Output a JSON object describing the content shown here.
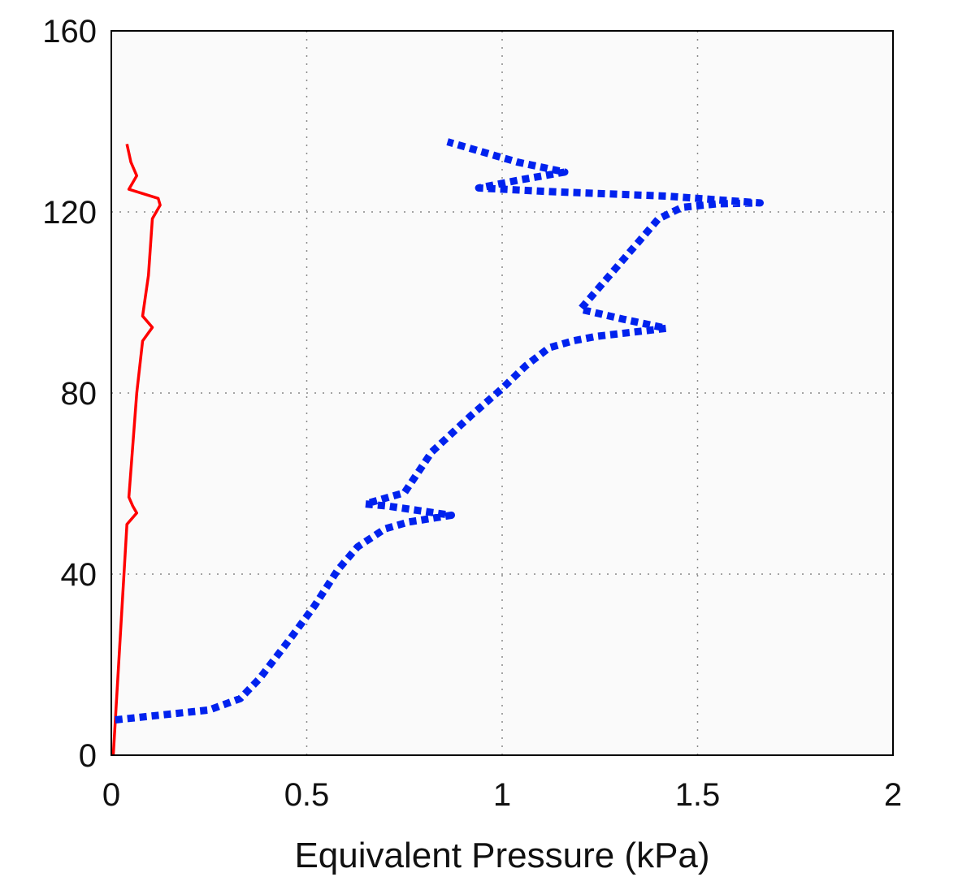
{
  "chart_data": {
    "type": "line",
    "title": "",
    "xlabel": "Equivalent Pressure (kPa)",
    "ylabel": "",
    "xlim": [
      0,
      2
    ],
    "ylim": [
      0,
      160
    ],
    "xticks": [
      "0",
      "0.5",
      "1",
      "1.5",
      "2"
    ],
    "yticks": [
      "0",
      "40",
      "80",
      "120",
      "160"
    ],
    "grid": true,
    "legend": "none",
    "series": [
      {
        "color": "#ff0000",
        "style": "solid",
        "points": [
          [
            0.04,
            135
          ],
          [
            0.05,
            131
          ],
          [
            0.065,
            128
          ],
          [
            0.045,
            125
          ],
          [
            0.12,
            123
          ],
          [
            0.125,
            121.5
          ],
          [
            0.105,
            118.5
          ],
          [
            0.095,
            106
          ],
          [
            0.08,
            97
          ],
          [
            0.105,
            94.5
          ],
          [
            0.08,
            91.5
          ],
          [
            0.065,
            80
          ],
          [
            0.045,
            57
          ],
          [
            0.055,
            55
          ],
          [
            0.065,
            53.5
          ],
          [
            0.04,
            51
          ],
          [
            0.005,
            0
          ]
        ]
      },
      {
        "color": "#0022ee",
        "style": "dotted",
        "points": [
          [
            0.01,
            7.8
          ],
          [
            0.25,
            10
          ],
          [
            0.33,
            12.5
          ],
          [
            0.38,
            17
          ],
          [
            0.46,
            26
          ],
          [
            0.52,
            33
          ],
          [
            0.58,
            41
          ],
          [
            0.63,
            46
          ],
          [
            0.7,
            50
          ],
          [
            0.76,
            51.5
          ],
          [
            0.87,
            53
          ],
          [
            0.71,
            55
          ],
          [
            0.65,
            55.5
          ],
          [
            0.75,
            58
          ],
          [
            0.82,
            67
          ],
          [
            0.92,
            75
          ],
          [
            1.0,
            81
          ],
          [
            1.06,
            86
          ],
          [
            1.12,
            90
          ],
          [
            1.18,
            91.5
          ],
          [
            1.24,
            92.5
          ],
          [
            1.42,
            94.3
          ],
          [
            1.31,
            96.3
          ],
          [
            1.2,
            98.5
          ],
          [
            1.26,
            104.5
          ],
          [
            1.32,
            110.5
          ],
          [
            1.4,
            118.5
          ],
          [
            1.46,
            121
          ],
          [
            1.55,
            121.8
          ],
          [
            1.66,
            122
          ],
          [
            1.42,
            123.5
          ],
          [
            1.12,
            124.5
          ],
          [
            0.94,
            125.3
          ],
          [
            1.04,
            127
          ],
          [
            1.16,
            128.8
          ],
          [
            1.04,
            131
          ],
          [
            0.86,
            135.5
          ]
        ]
      }
    ]
  }
}
